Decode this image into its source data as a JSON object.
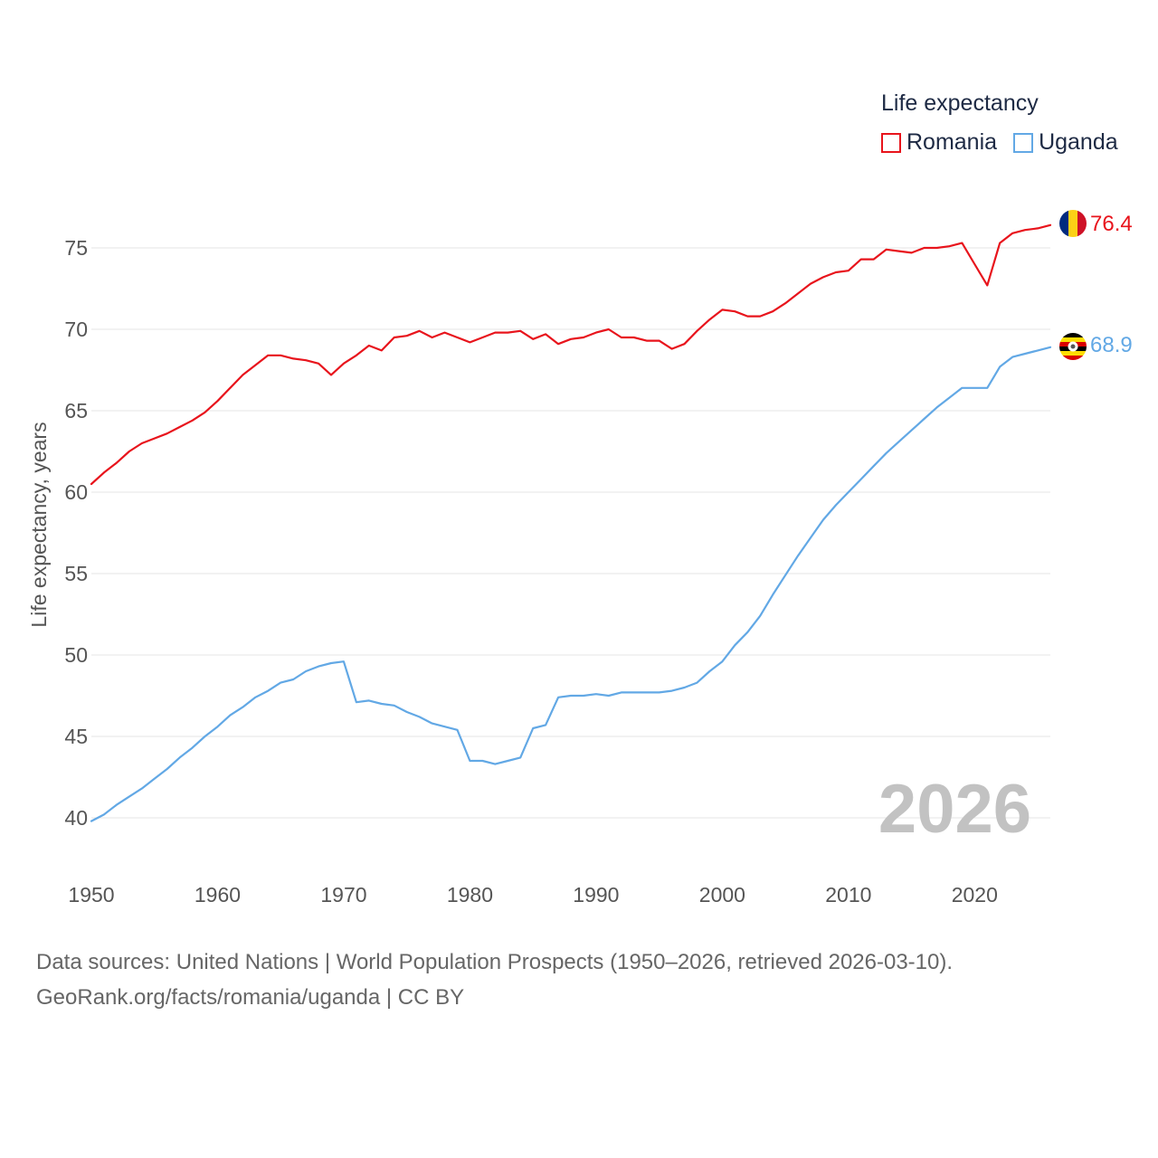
{
  "legend": {
    "title": "Life expectancy",
    "items": [
      {
        "name": "Romania",
        "color": "#e8141c"
      },
      {
        "name": "Uganda",
        "color": "#62a8e5"
      }
    ]
  },
  "footer": {
    "line1": "Data sources: United Nations | World Population Prospects (1950–2026, retrieved 2026-03-10).",
    "line2": "GeoRank.org/facts/romania/uganda | CC BY"
  },
  "chart_data": {
    "type": "line",
    "title": "Life expectancy",
    "ylabel": "Life expectancy, years",
    "xlabel": "",
    "xlim": [
      1950,
      2026
    ],
    "ylim": [
      38,
      80
    ],
    "x_ticks": [
      1950,
      1960,
      1970,
      1980,
      1990,
      2000,
      2010,
      2020
    ],
    "y_ticks": [
      40,
      45,
      50,
      55,
      60,
      65,
      70,
      75
    ],
    "watermark": "2026",
    "end_labels": [
      "76.4",
      "68.9"
    ],
    "flag_icons": [
      "romania-flag-icon",
      "uganda-flag-icon"
    ],
    "x": [
      1950,
      1951,
      1952,
      1953,
      1954,
      1955,
      1956,
      1957,
      1958,
      1959,
      1960,
      1961,
      1962,
      1963,
      1964,
      1965,
      1966,
      1967,
      1968,
      1969,
      1970,
      1971,
      1972,
      1973,
      1974,
      1975,
      1976,
      1977,
      1978,
      1979,
      1980,
      1981,
      1982,
      1983,
      1984,
      1985,
      1986,
      1987,
      1988,
      1989,
      1990,
      1991,
      1992,
      1993,
      1994,
      1995,
      1996,
      1997,
      1998,
      1999,
      2000,
      2001,
      2002,
      2003,
      2004,
      2005,
      2006,
      2007,
      2008,
      2009,
      2010,
      2011,
      2012,
      2013,
      2014,
      2015,
      2016,
      2017,
      2018,
      2019,
      2020,
      2021,
      2022,
      2023,
      2024,
      2025,
      2026
    ],
    "series": [
      {
        "name": "Romania",
        "color": "#e8141c",
        "values": [
          60.5,
          61.2,
          61.8,
          62.5,
          63.0,
          63.3,
          63.6,
          64.0,
          64.4,
          64.9,
          65.6,
          66.4,
          67.2,
          67.8,
          68.4,
          68.4,
          68.2,
          68.1,
          67.9,
          67.2,
          67.9,
          68.4,
          69.0,
          68.7,
          69.5,
          69.6,
          69.9,
          69.5,
          69.8,
          69.5,
          69.2,
          69.5,
          69.8,
          69.8,
          69.9,
          69.4,
          69.7,
          69.1,
          69.4,
          69.5,
          69.8,
          70.0,
          69.5,
          69.5,
          69.3,
          69.3,
          68.8,
          69.1,
          69.9,
          70.6,
          71.2,
          71.1,
          70.8,
          70.8,
          71.1,
          71.6,
          72.2,
          72.8,
          73.2,
          73.5,
          73.6,
          74.3,
          74.3,
          74.9,
          74.8,
          74.7,
          75.0,
          75.0,
          75.1,
          75.3,
          74.0,
          72.7,
          75.3,
          75.9,
          76.1,
          76.2,
          76.4
        ]
      },
      {
        "name": "Uganda",
        "color": "#62a8e5",
        "values": [
          39.8,
          40.2,
          40.8,
          41.3,
          41.8,
          42.4,
          43.0,
          43.7,
          44.3,
          45.0,
          45.6,
          46.3,
          46.8,
          47.4,
          47.8,
          48.3,
          48.5,
          49.0,
          49.3,
          49.5,
          49.6,
          47.1,
          47.2,
          47.0,
          46.9,
          46.5,
          46.2,
          45.8,
          45.6,
          45.4,
          43.5,
          43.5,
          43.3,
          43.5,
          43.7,
          45.5,
          45.7,
          47.4,
          47.5,
          47.5,
          47.6,
          47.5,
          47.7,
          47.7,
          47.7,
          47.7,
          47.8,
          48.0,
          48.3,
          49.0,
          49.6,
          50.6,
          51.4,
          52.4,
          53.7,
          54.9,
          56.1,
          57.2,
          58.3,
          59.2,
          60.0,
          60.8,
          61.6,
          62.4,
          63.1,
          63.8,
          64.5,
          65.2,
          65.8,
          66.4,
          66.4,
          66.4,
          67.7,
          68.3,
          68.5,
          68.7,
          68.9
        ]
      }
    ]
  }
}
